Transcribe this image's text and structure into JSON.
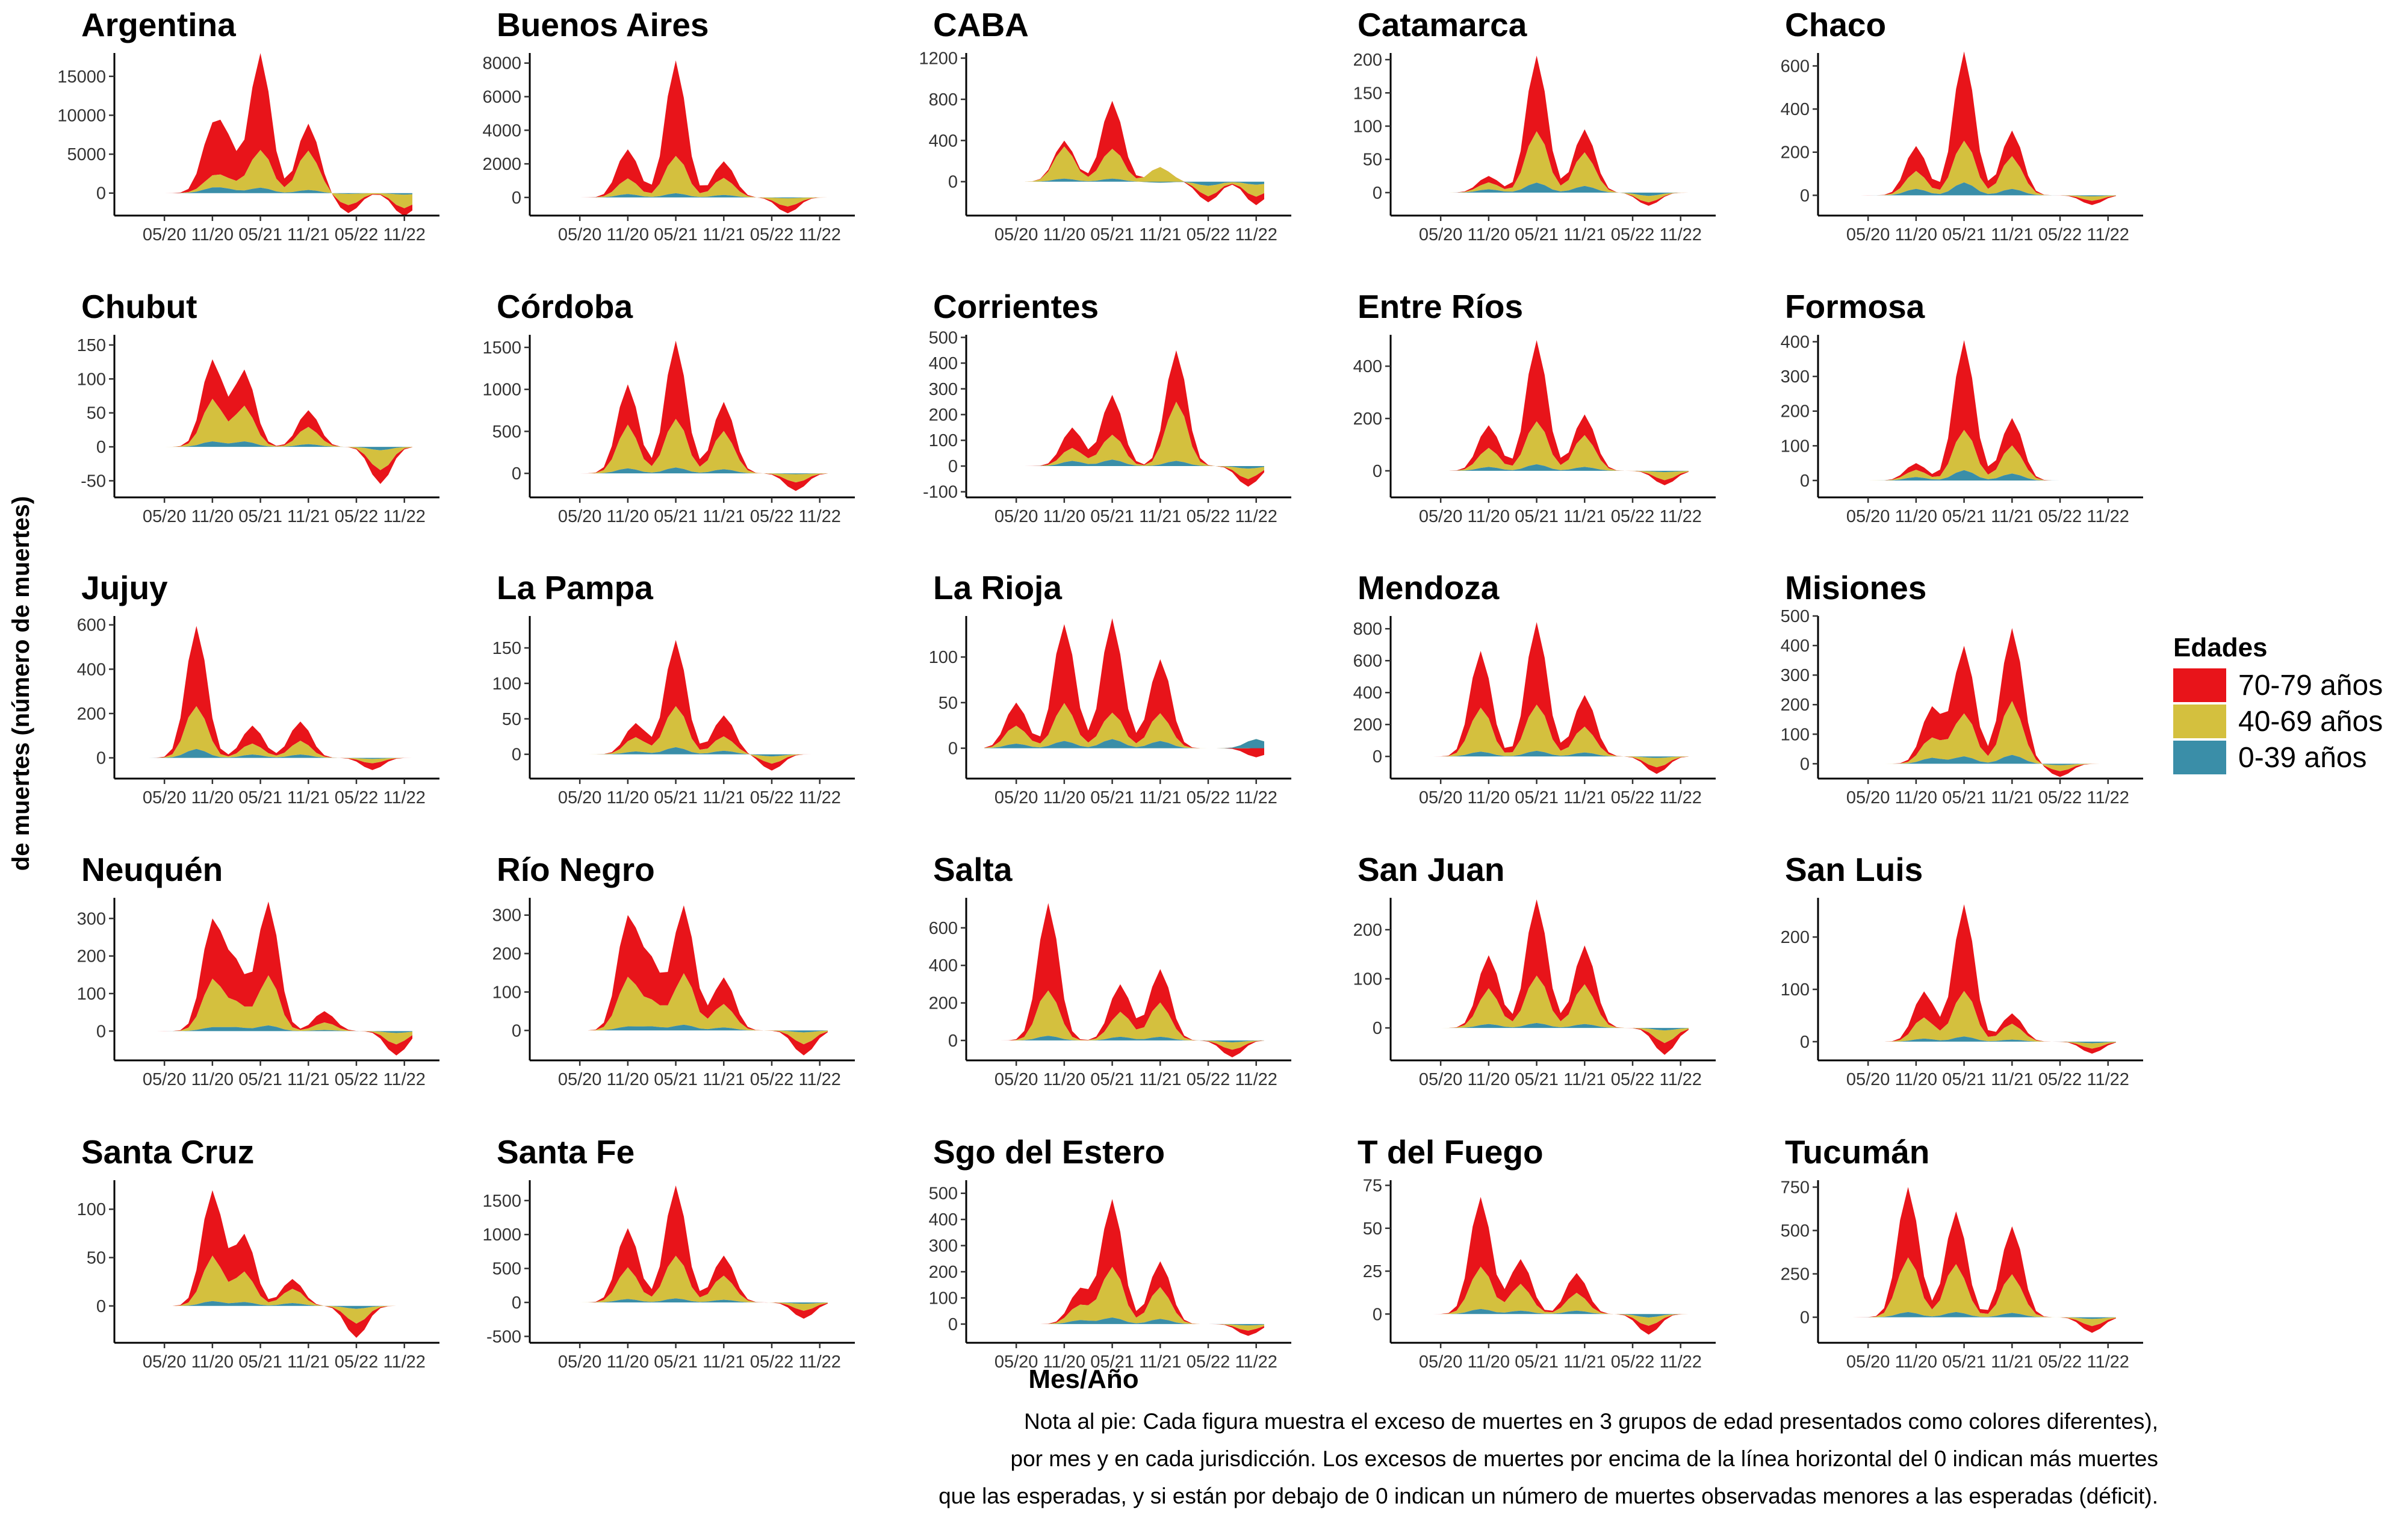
{
  "figure": {
    "ylabel": "de muertes (número de muertes)",
    "xlabel": "Mes/Año",
    "legend": {
      "title": "Edades",
      "placement": "right",
      "items": [
        {
          "label": "70-79 años",
          "color": "#E8141A"
        },
        {
          "label": "40-69 años",
          "color": "#D4C03E"
        },
        {
          "label": "0-39 años",
          "color": "#3A8EA8"
        }
      ]
    },
    "footnote": [
      "Nota al pie: Cada figura muestra el exceso de muertes en 3 grupos de edad presentados como colores diferentes),",
      "por mes y en cada jurisdicción. Los excesos de muertes por encima de la línea horizontal del 0 indican más muertes",
      "que las esperadas, y si están por debajo de 0 indican un número de muertes observadas menores a las esperadas (déficit)."
    ]
  },
  "chart_data": {
    "type": "area",
    "stacking": "stacked",
    "months_start": "2020-01",
    "months_end": "2022-12",
    "x_tick_labels": [
      "05/20",
      "11/20",
      "05/21",
      "11/21",
      "05/22",
      "11/22"
    ],
    "series_names": [
      "70-79 años",
      "40-69 años",
      "0-39 años"
    ],
    "panels": [
      {
        "title": "Argentina",
        "yticks": [
          0,
          5000,
          10000,
          15000
        ],
        "ylim": [
          -2500,
          18000
        ],
        "peaks": [
          [
            10,
            6000,
            1200,
            600
          ],
          [
            12,
            3500,
            1000,
            400
          ],
          [
            16,
            12000,
            5000,
            700
          ],
          [
            22,
            3500,
            5000,
            400
          ],
          [
            27,
            -1000,
            -1500,
            -100
          ],
          [
            34,
            -1000,
            -1800,
            -200
          ]
        ]
      },
      {
        "title": "Buenos Aires",
        "yticks": [
          0,
          2000,
          4000,
          6000,
          8000
        ],
        "ylim": [
          -900,
          8600
        ],
        "peaks": [
          [
            10,
            1800,
            900,
            200
          ],
          [
            16,
            5500,
            2300,
            250
          ],
          [
            22,
            1000,
            1000,
            150
          ],
          [
            30,
            -400,
            -500,
            -50
          ]
        ]
      },
      {
        "title": "CABA",
        "yticks": [
          0,
          400,
          800,
          1200
        ],
        "ylim": [
          -300,
          1250
        ],
        "peaks": [
          [
            10,
            60,
            300,
            30
          ],
          [
            16,
            450,
            300,
            30
          ],
          [
            22,
            -20,
            150,
            -10
          ],
          [
            28,
            -60,
            -100,
            -40
          ],
          [
            34,
            -80,
            -120,
            -30
          ]
        ]
      },
      {
        "title": "Catamarca",
        "yticks": [
          0,
          50,
          100,
          150,
          200
        ],
        "ylim": [
          -30,
          210
        ],
        "peaks": [
          [
            16,
            110,
            80,
            15
          ],
          [
            22,
            35,
            50,
            10
          ],
          [
            10,
            10,
            10,
            5
          ],
          [
            30,
            -5,
            -10,
            -5
          ]
        ]
      },
      {
        "title": "Chaco",
        "yticks": [
          0,
          200,
          400,
          600
        ],
        "ylim": [
          -80,
          660
        ],
        "peaks": [
          [
            10,
            120,
            80,
            30
          ],
          [
            16,
            400,
            200,
            60
          ],
          [
            22,
            120,
            150,
            30
          ],
          [
            32,
            -20,
            -20,
            -5
          ]
        ]
      },
      {
        "title": "Chubut",
        "yticks": [
          -50,
          0,
          50,
          100,
          150
        ],
        "ylim": [
          -70,
          165
        ],
        "peaks": [
          [
            10,
            60,
            60,
            8
          ],
          [
            14,
            55,
            50,
            8
          ],
          [
            22,
            25,
            25,
            4
          ],
          [
            31,
            -20,
            -30,
            -5
          ]
        ]
      },
      {
        "title": "Córdoba",
        "yticks": [
          0,
          500,
          1000,
          1500
        ],
        "ylim": [
          -250,
          1650
        ],
        "peaks": [
          [
            10,
            500,
            500,
            60
          ],
          [
            16,
            900,
            600,
            70
          ],
          [
            22,
            350,
            450,
            50
          ],
          [
            31,
            -100,
            -100,
            -10
          ]
        ]
      },
      {
        "title": "Corrientes",
        "yticks": [
          -100,
          0,
          100,
          200,
          300,
          400,
          500
        ],
        "ylim": [
          -110,
          510
        ],
        "peaks": [
          [
            11,
            80,
            50,
            20
          ],
          [
            16,
            150,
            100,
            25
          ],
          [
            24,
            200,
            230,
            20
          ],
          [
            33,
            -30,
            -40,
            -10
          ]
        ]
      },
      {
        "title": "Entre Ríos",
        "yticks": [
          0,
          200,
          400
        ],
        "ylim": [
          -90,
          520
        ],
        "peaks": [
          [
            10,
            90,
            70,
            15
          ],
          [
            16,
            300,
            170,
            25
          ],
          [
            22,
            80,
            120,
            15
          ],
          [
            32,
            -20,
            -30,
            -5
          ]
        ]
      },
      {
        "title": "Formosa",
        "yticks": [
          0,
          100,
          200,
          300,
          400
        ],
        "ylim": [
          -40,
          420
        ],
        "peaks": [
          [
            16,
            250,
            120,
            30
          ],
          [
            22,
            80,
            80,
            20
          ],
          [
            10,
            20,
            20,
            10
          ]
        ]
      },
      {
        "title": "Jujuy",
        "yticks": [
          0,
          200,
          400,
          600
        ],
        "ylim": [
          -80,
          640
        ],
        "peaks": [
          [
            8,
            350,
            200,
            40
          ],
          [
            15,
            80,
            50,
            15
          ],
          [
            21,
            90,
            60,
            15
          ],
          [
            30,
            -30,
            -20,
            -5
          ]
        ]
      },
      {
        "title": "La Pampa",
        "yticks": [
          0,
          50,
          100,
          150
        ],
        "ylim": [
          -30,
          195
        ],
        "peaks": [
          [
            11,
            20,
            20,
            4
          ],
          [
            16,
            90,
            60,
            10
          ],
          [
            22,
            30,
            20,
            5
          ],
          [
            28,
            -10,
            -10,
            -3
          ]
        ]
      },
      {
        "title": "La Rioja",
        "yticks": [
          0,
          50,
          100
        ],
        "ylim": [
          -30,
          145
        ],
        "peaks": [
          [
            4,
            25,
            20,
            5
          ],
          [
            10,
            90,
            40,
            8
          ],
          [
            16,
            100,
            30,
            10
          ],
          [
            22,
            60,
            30,
            8
          ],
          [
            34,
            -10,
            -10,
            10
          ]
        ]
      },
      {
        "title": "Mendoza",
        "yticks": [
          0,
          200,
          400,
          600,
          800
        ],
        "ylim": [
          -120,
          880
        ],
        "peaks": [
          [
            9,
            350,
            280,
            30
          ],
          [
            16,
            500,
            300,
            35
          ],
          [
            22,
            200,
            160,
            25
          ],
          [
            31,
            -40,
            -60,
            -10
          ]
        ]
      },
      {
        "title": "Misiones",
        "yticks": [
          0,
          100,
          200,
          300,
          400,
          500
        ],
        "ylim": [
          -40,
          500
        ],
        "peaks": [
          [
            12,
            100,
            70,
            20
          ],
          [
            16,
            220,
            150,
            25
          ],
          [
            22,
            250,
            180,
            30
          ],
          [
            28,
            -20,
            -20,
            -5
          ]
        ]
      },
      {
        "title": "Neuquén",
        "yticks": [
          0,
          100,
          200,
          300
        ],
        "ylim": [
          -70,
          355
        ],
        "peaks": [
          [
            10,
            160,
            120,
            10
          ],
          [
            13,
            100,
            60,
            10
          ],
          [
            17,
            200,
            130,
            15
          ],
          [
            24,
            30,
            20,
            3
          ],
          [
            33,
            -30,
            -30,
            -5
          ]
        ]
      },
      {
        "title": "Río Negro",
        "yticks": [
          0,
          100,
          200,
          300
        ],
        "ylim": [
          -70,
          345
        ],
        "peaks": [
          [
            10,
            160,
            120,
            10
          ],
          [
            13,
            100,
            60,
            10
          ],
          [
            17,
            180,
            130,
            15
          ],
          [
            22,
            70,
            60,
            8
          ],
          [
            32,
            -30,
            -30,
            -5
          ]
        ]
      },
      {
        "title": "Salta",
        "yticks": [
          0,
          200,
          400,
          600
        ],
        "ylim": [
          -90,
          760
        ],
        "peaks": [
          [
            8,
            450,
            250,
            25
          ],
          [
            17,
            150,
            130,
            20
          ],
          [
            22,
            180,
            180,
            20
          ],
          [
            31,
            -40,
            -40,
            -10
          ]
        ]
      },
      {
        "title": "San Juan",
        "yticks": [
          0,
          100,
          200
        ],
        "ylim": [
          -60,
          265
        ],
        "peaks": [
          [
            10,
            70,
            70,
            8
          ],
          [
            16,
            150,
            100,
            10
          ],
          [
            22,
            80,
            80,
            8
          ],
          [
            32,
            -25,
            -25,
            -5
          ]
        ]
      },
      {
        "title": "San Luis",
        "yticks": [
          0,
          100,
          200
        ],
        "ylim": [
          -30,
          275
        ],
        "peaks": [
          [
            11,
            50,
            40,
            6
          ],
          [
            16,
            160,
            90,
            10
          ],
          [
            22,
            20,
            30,
            4
          ],
          [
            32,
            -10,
            -10,
            -3
          ]
        ]
      },
      {
        "title": "Santa Cruz",
        "yticks": [
          0,
          50,
          100
        ],
        "ylim": [
          -35,
          130
        ],
        "peaks": [
          [
            10,
            70,
            45,
            5
          ],
          [
            14,
            40,
            30,
            4
          ],
          [
            20,
            10,
            15,
            3
          ],
          [
            28,
            -15,
            -15,
            -3
          ]
        ]
      },
      {
        "title": "Santa Fe",
        "yticks": [
          -500,
          0,
          500,
          1000,
          1500
        ],
        "ylim": [
          -550,
          1800
        ],
        "peaks": [
          [
            10,
            600,
            450,
            50
          ],
          [
            16,
            1000,
            650,
            60
          ],
          [
            22,
            300,
            350,
            40
          ],
          [
            32,
            -120,
            -100,
            -20
          ]
        ]
      },
      {
        "title": "Sgo del Estero",
        "yticks": [
          0,
          100,
          200,
          300,
          400,
          500
        ],
        "ylim": [
          -60,
          550
        ],
        "peaks": [
          [
            12,
            60,
            60,
            15
          ],
          [
            16,
            250,
            200,
            25
          ],
          [
            22,
            100,
            120,
            20
          ],
          [
            33,
            -20,
            -20,
            -5
          ]
        ]
      },
      {
        "title": "T del Fuego",
        "yticks": [
          0,
          25,
          50,
          75
        ],
        "ylim": [
          -15,
          78
        ],
        "peaks": [
          [
            9,
            40,
            25,
            3
          ],
          [
            14,
            15,
            15,
            2
          ],
          [
            21,
            12,
            10,
            2
          ],
          [
            30,
            -5,
            -5,
            -2
          ]
        ]
      },
      {
        "title": "Tucumán",
        "yticks": [
          0,
          250,
          500,
          750
        ],
        "ylim": [
          -130,
          790
        ],
        "peaks": [
          [
            9,
            400,
            320,
            30
          ],
          [
            15,
            300,
            280,
            30
          ],
          [
            22,
            280,
            220,
            25
          ],
          [
            32,
            -40,
            -40,
            -10
          ]
        ]
      }
    ]
  }
}
